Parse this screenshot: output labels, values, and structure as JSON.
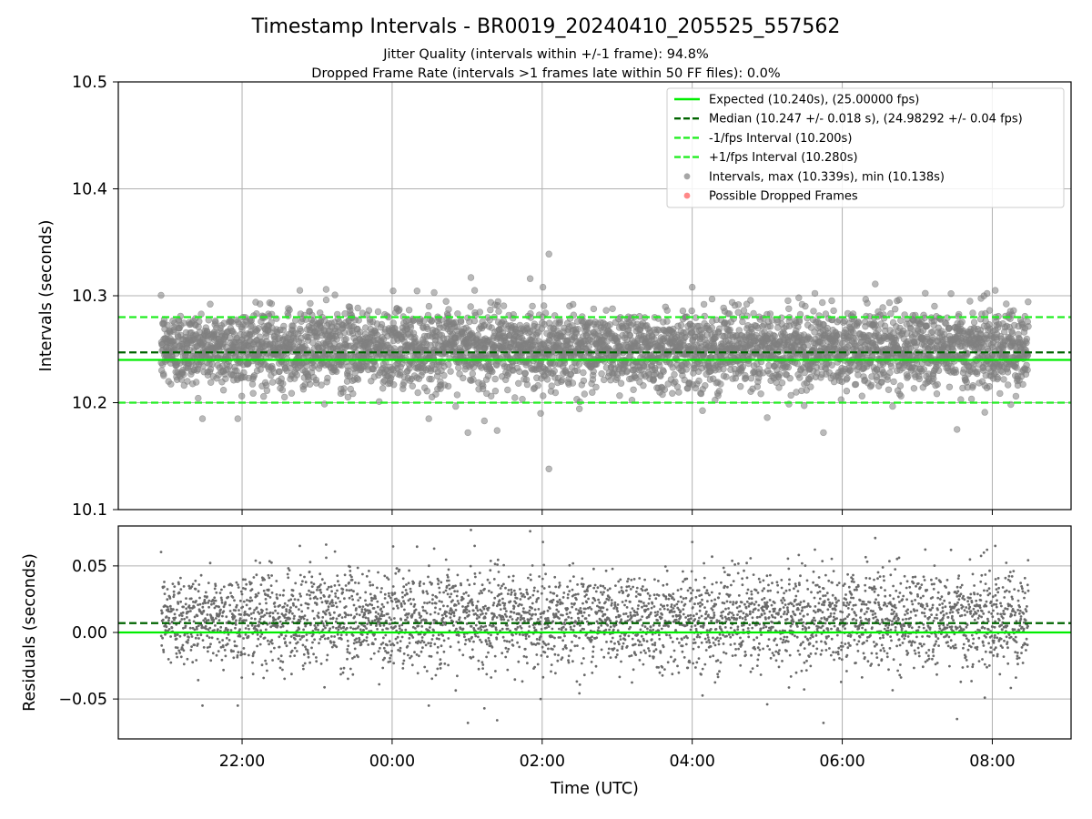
{
  "title": "Timestamp Intervals - BR0019_20240410_205525_557562",
  "subtitle_line1": "Jitter Quality (intervals within +/-1 frame): 94.8%",
  "subtitle_line2": "Dropped Frame Rate (intervals >1 frames late within 50 FF files): 0.0%",
  "colors": {
    "expected": "#00ee00",
    "median": "#006400",
    "interval_lines": "#22ee22",
    "points": "#808080",
    "dropped": "#ff5555",
    "grid": "#b0b0b0"
  },
  "chart_data": [
    {
      "type": "scatter",
      "ylabel": "Intervals (seconds)",
      "ylim": [
        10.1,
        10.5
      ],
      "yticks": [
        "10.1",
        "10.2",
        "10.3",
        "10.4",
        "10.5"
      ],
      "ytick_values": [
        10.1,
        10.2,
        10.3,
        10.4,
        10.5
      ],
      "x_domain_hours": [
        20.35,
        33.05
      ],
      "xtick_values_hours": [
        22,
        24,
        26,
        28,
        30,
        32
      ],
      "grid": true,
      "legend_placement": "top-right",
      "lines": [
        {
          "key": "expected",
          "y": 10.24,
          "style": "solid"
        },
        {
          "key": "median",
          "y": 10.247,
          "style": "dashed"
        },
        {
          "key": "minus",
          "y": 10.2,
          "style": "dashed"
        },
        {
          "key": "plus",
          "y": 10.28,
          "style": "dashed"
        }
      ],
      "legend": [
        {
          "key": "expected",
          "label": "Expected (10.240s), (25.00000 fps)",
          "marker": "line"
        },
        {
          "key": "median",
          "label": "Median (10.247 +/- 0.018 s), (24.98292 +/- 0.04 fps)",
          "marker": "dash"
        },
        {
          "key": "minus",
          "label": "-1/fps Interval (10.200s)",
          "marker": "dash"
        },
        {
          "key": "plus",
          "label": "+1/fps Interval (10.280s)",
          "marker": "dash"
        },
        {
          "key": "points",
          "label": "Intervals, max (10.339s), min (10.138s)",
          "marker": "dot"
        },
        {
          "key": "dropped",
          "label": "Possible Dropped Frames",
          "marker": "dot"
        }
      ],
      "series": {
        "time_start_hours": 20.92,
        "time_end_hours": 32.48,
        "count": 4060,
        "center": 10.2505,
        "spread": 0.018,
        "max": 10.339,
        "min": 10.138,
        "outliers": [
          {
            "t": 26.09,
            "y": 10.339
          },
          {
            "t": 26.09,
            "y": 10.138
          },
          {
            "t": 25.98,
            "y": 10.19
          },
          {
            "t": 25.84,
            "y": 10.316
          },
          {
            "t": 25.05,
            "y": 10.317
          },
          {
            "t": 25.1,
            "y": 10.305
          },
          {
            "t": 25.01,
            "y": 10.172
          },
          {
            "t": 25.4,
            "y": 10.174
          },
          {
            "t": 25.23,
            "y": 10.183
          },
          {
            "t": 29.0,
            "y": 10.186
          },
          {
            "t": 29.75,
            "y": 10.172
          },
          {
            "t": 30.44,
            "y": 10.311
          },
          {
            "t": 31.45,
            "y": 10.302
          },
          {
            "t": 31.53,
            "y": 10.175
          },
          {
            "t": 32.04,
            "y": 10.305
          },
          {
            "t": 31.9,
            "y": 10.191
          },
          {
            "t": 22.77,
            "y": 10.305
          },
          {
            "t": 23.12,
            "y": 10.306
          }
        ]
      }
    },
    {
      "type": "scatter",
      "ylabel": "Residuals (seconds)",
      "xlabel": "Time (UTC)",
      "ylim": [
        -0.08,
        0.08
      ],
      "yticks": [
        "−0.05",
        "0.00",
        "0.05"
      ],
      "ytick_values": [
        -0.05,
        0.0,
        0.05
      ],
      "xticks": [
        "22:00",
        "00:00",
        "02:00",
        "04:00",
        "06:00",
        "08:00"
      ],
      "xtick_values_hours": [
        22,
        24,
        26,
        28,
        30,
        32
      ],
      "x_domain_hours": [
        20.35,
        33.05
      ],
      "grid": true,
      "lines": [
        {
          "key": "expected",
          "y": 0.0,
          "style": "solid"
        },
        {
          "key": "median",
          "y": 0.007,
          "style": "dashed"
        }
      ]
    }
  ]
}
